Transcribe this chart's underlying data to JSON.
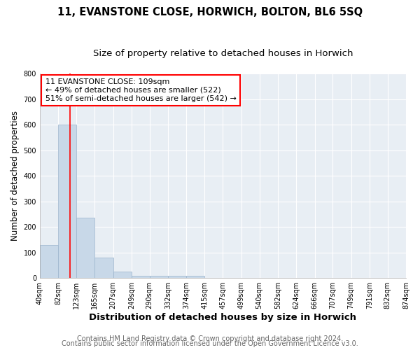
{
  "title1": "11, EVANSTONE CLOSE, HORWICH, BOLTON, BL6 5SQ",
  "title2": "Size of property relative to detached houses in Horwich",
  "xlabel": "Distribution of detached houses by size in Horwich",
  "ylabel": "Number of detached properties",
  "footer1": "Contains HM Land Registry data © Crown copyright and database right 2024.",
  "footer2": "Contains public sector information licensed under the Open Government Licence v3.0.",
  "annotation_line1": "11 EVANSTONE CLOSE: 109sqm",
  "annotation_line2": "← 49% of detached houses are smaller (522)",
  "annotation_line3": "51% of semi-detached houses are larger (542) →",
  "bar_edges": [
    40,
    82,
    123,
    165,
    207,
    249,
    290,
    332,
    374,
    415,
    457,
    499,
    540,
    582,
    624,
    666,
    707,
    749,
    791,
    832,
    874
  ],
  "bar_heights": [
    130,
    600,
    235,
    80,
    25,
    10,
    8,
    8,
    10,
    0,
    0,
    0,
    0,
    0,
    0,
    0,
    0,
    0,
    0,
    0
  ],
  "bar_color": "#c8d8e8",
  "bar_edge_color": "#9ab4cc",
  "red_line_x": 109,
  "ylim": [
    0,
    800
  ],
  "yticks": [
    0,
    100,
    200,
    300,
    400,
    500,
    600,
    700,
    800
  ],
  "bg_color": "#ffffff",
  "plot_bg_color": "#e8eef4",
  "grid_color": "#ffffff",
  "title_fontsize": 10.5,
  "subtitle_fontsize": 9.5,
  "xlabel_fontsize": 9.5,
  "ylabel_fontsize": 8.5,
  "tick_fontsize": 7,
  "footer_fontsize": 7,
  "annot_fontsize": 8
}
